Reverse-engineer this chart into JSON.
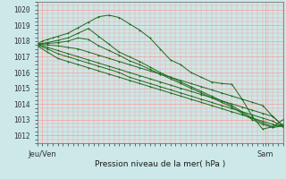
{
  "title": "Pression niveau de la mer( hPa )",
  "xlabel_left": "Jeu/Ven",
  "xlabel_right": "Sam",
  "ylim": [
    1011.5,
    1020.5
  ],
  "yticks": [
    1012,
    1013,
    1014,
    1015,
    1016,
    1017,
    1018,
    1019,
    1020
  ],
  "bg_color": "#cce8e8",
  "grid_color": "#ff9999",
  "line_color": "#1a6b1a",
  "marker_color": "#1a6b1a",
  "lines": [
    {
      "x": [
        0,
        1,
        2,
        3,
        4,
        6,
        8,
        10,
        12,
        14,
        16,
        18,
        20,
        22,
        24,
        26,
        28,
        30,
        32,
        34,
        36,
        38,
        40,
        42,
        44,
        46,
        48
      ],
      "y": [
        1017.8,
        1018.0,
        1018.1,
        1018.2,
        1018.3,
        1018.5,
        1018.85,
        1019.2,
        1019.55,
        1019.65,
        1019.5,
        1019.1,
        1018.7,
        1018.2,
        1017.5,
        1016.8,
        1016.5,
        1016.0,
        1015.7,
        1015.4,
        1015.3,
        1015.25,
        1014.3,
        1013.2,
        1012.4,
        1012.55,
        1013.0
      ],
      "marker": "+"
    },
    {
      "x": [
        0,
        2,
        4,
        6,
        8,
        10,
        12,
        14,
        16,
        18,
        20,
        22,
        24,
        26,
        28,
        30,
        32,
        34,
        36,
        38,
        40,
        42,
        44,
        46,
        48
      ],
      "y": [
        1017.8,
        1017.9,
        1018.05,
        1018.2,
        1018.5,
        1018.8,
        1018.3,
        1017.8,
        1017.3,
        1017.0,
        1016.7,
        1016.35,
        1016.0,
        1015.7,
        1015.4,
        1015.1,
        1014.8,
        1014.5,
        1014.2,
        1013.9,
        1013.5,
        1013.1,
        1012.8,
        1012.55,
        1012.7
      ],
      "marker": "+"
    },
    {
      "x": [
        0,
        2,
        4,
        6,
        8,
        10,
        12,
        14,
        16,
        18,
        20,
        22,
        24,
        26,
        28,
        30,
        32,
        34,
        36,
        38,
        40,
        42,
        44,
        46,
        48
      ],
      "y": [
        1017.8,
        1017.85,
        1017.9,
        1018.0,
        1018.2,
        1018.1,
        1017.7,
        1017.4,
        1017.1,
        1016.75,
        1016.5,
        1016.2,
        1015.9,
        1015.6,
        1015.3,
        1015.0,
        1014.7,
        1014.4,
        1014.1,
        1013.8,
        1013.4,
        1013.0,
        1012.7,
        1012.5,
        1012.6
      ],
      "marker": "+"
    },
    {
      "x": [
        0,
        2,
        4,
        6,
        8,
        10,
        12,
        14,
        16,
        18,
        20,
        22,
        24,
        26,
        28,
        30,
        32,
        34,
        36,
        38,
        40,
        42,
        44,
        46,
        48
      ],
      "y": [
        1017.75,
        1017.5,
        1017.2,
        1017.0,
        1016.8,
        1016.6,
        1016.4,
        1016.2,
        1016.0,
        1015.7,
        1015.5,
        1015.3,
        1015.1,
        1014.9,
        1014.7,
        1014.5,
        1014.3,
        1014.1,
        1013.9,
        1013.7,
        1013.5,
        1013.3,
        1013.1,
        1012.9,
        1012.55
      ],
      "marker": "+"
    },
    {
      "x": [
        0,
        2,
        4,
        6,
        8,
        10,
        12,
        14,
        16,
        18,
        20,
        22,
        24,
        26,
        28,
        30,
        32,
        34,
        36,
        38,
        40,
        42,
        44,
        46,
        48
      ],
      "y": [
        1017.7,
        1017.3,
        1016.9,
        1016.7,
        1016.5,
        1016.3,
        1016.1,
        1015.9,
        1015.7,
        1015.5,
        1015.3,
        1015.1,
        1014.9,
        1014.7,
        1014.5,
        1014.3,
        1014.1,
        1013.9,
        1013.7,
        1013.5,
        1013.3,
        1013.1,
        1012.9,
        1012.7,
        1012.55
      ],
      "marker": "+"
    },
    {
      "x": [
        0,
        2,
        4,
        6,
        8,
        10,
        12,
        14,
        16,
        18,
        20,
        22,
        24,
        26,
        28,
        30,
        32,
        34,
        36,
        38,
        40,
        42,
        44,
        46,
        48
      ],
      "y": [
        1017.8,
        1017.6,
        1017.4,
        1017.2,
        1017.0,
        1016.8,
        1016.6,
        1016.4,
        1016.2,
        1016.0,
        1015.8,
        1015.6,
        1015.4,
        1015.2,
        1015.0,
        1014.8,
        1014.6,
        1014.4,
        1014.2,
        1014.0,
        1013.8,
        1013.6,
        1013.4,
        1013.2,
        1012.6
      ],
      "marker": "+"
    },
    {
      "x": [
        0,
        2,
        4,
        6,
        8,
        10,
        12,
        14,
        16,
        18,
        20,
        22,
        24,
        26,
        28,
        30,
        32,
        34,
        36,
        38,
        40,
        42,
        44,
        46,
        48
      ],
      "y": [
        1017.8,
        1017.75,
        1017.7,
        1017.6,
        1017.5,
        1017.3,
        1017.1,
        1016.9,
        1016.7,
        1016.5,
        1016.3,
        1016.1,
        1015.9,
        1015.7,
        1015.5,
        1015.3,
        1015.1,
        1014.9,
        1014.7,
        1014.5,
        1014.3,
        1014.1,
        1013.9,
        1013.2,
        1012.6
      ],
      "marker": "+"
    }
  ],
  "xlim": [
    0,
    48
  ],
  "tick_left_x": 1,
  "tick_right_x": 44.5
}
